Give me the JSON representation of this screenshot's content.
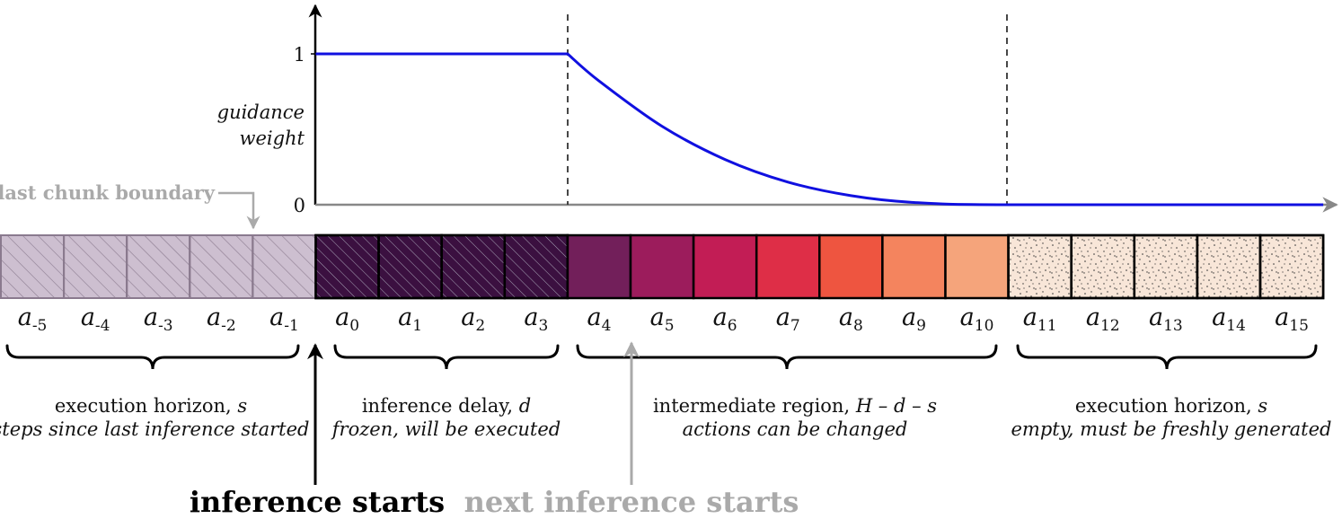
{
  "plot": {
    "y_label_line1": "guidance",
    "y_label_line2": "weight",
    "y_tick_top": "1",
    "y_tick_bottom": "0"
  },
  "chart_data": {
    "type": "line",
    "series": [
      {
        "points": [
          [
            -0.5,
            1
          ],
          [
            3.5,
            1
          ],
          [
            4,
            0.82
          ],
          [
            5,
            0.52
          ],
          [
            6,
            0.3
          ],
          [
            7,
            0.15
          ],
          [
            8,
            0.06
          ],
          [
            9,
            0.015
          ],
          [
            10.5,
            0
          ],
          [
            15.5,
            0
          ]
        ]
      }
    ],
    "line_color": "#1010e0",
    "ylim": [
      0,
      1
    ]
  },
  "chunk_boundary_label": "last chunk boundary",
  "cells": [
    {
      "base": "a",
      "sub": "-5",
      "fill": "#cdbfd0",
      "pattern": "hatch-light"
    },
    {
      "base": "a",
      "sub": "-4",
      "fill": "#cdbfd0",
      "pattern": "hatch-light"
    },
    {
      "base": "a",
      "sub": "-3",
      "fill": "#cdbfd0",
      "pattern": "hatch-light"
    },
    {
      "base": "a",
      "sub": "-2",
      "fill": "#cdbfd0",
      "pattern": "hatch-light"
    },
    {
      "base": "a",
      "sub": "-1",
      "fill": "#cdbfd0",
      "pattern": "hatch-light"
    },
    {
      "base": "a",
      "sub": "0",
      "fill": "#3b1040",
      "pattern": "hatch-dark"
    },
    {
      "base": "a",
      "sub": "1",
      "fill": "#3b1040",
      "pattern": "hatch-dark"
    },
    {
      "base": "a",
      "sub": "2",
      "fill": "#3b1040",
      "pattern": "hatch-dark"
    },
    {
      "base": "a",
      "sub": "3",
      "fill": "#3b1040",
      "pattern": "hatch-dark"
    },
    {
      "base": "a",
      "sub": "4",
      "fill": "#721f5a",
      "pattern": "none"
    },
    {
      "base": "a",
      "sub": "5",
      "fill": "#9c1c5c",
      "pattern": "none"
    },
    {
      "base": "a",
      "sub": "6",
      "fill": "#c21d55",
      "pattern": "none"
    },
    {
      "base": "a",
      "sub": "7",
      "fill": "#de2e47",
      "pattern": "none"
    },
    {
      "base": "a",
      "sub": "8",
      "fill": "#ee5540",
      "pattern": "none"
    },
    {
      "base": "a",
      "sub": "9",
      "fill": "#f4845e",
      "pattern": "none"
    },
    {
      "base": "a",
      "sub": "10",
      "fill": "#f5a47b",
      "pattern": "none"
    },
    {
      "base": "a",
      "sub": "11",
      "fill": "#f8e6d8",
      "pattern": "dots"
    },
    {
      "base": "a",
      "sub": "12",
      "fill": "#f8e6d8",
      "pattern": "dots"
    },
    {
      "base": "a",
      "sub": "13",
      "fill": "#f8e6d8",
      "pattern": "dots"
    },
    {
      "base": "a",
      "sub": "14",
      "fill": "#f8e6d8",
      "pattern": "dots"
    },
    {
      "base": "a",
      "sub": "15",
      "fill": "#f8e6d8",
      "pattern": "dots"
    }
  ],
  "regions": [
    {
      "line1_text": "execution horizon, ",
      "line1_var": "s",
      "line2": "steps since last inference started"
    },
    {
      "line1_text": "inference delay, ",
      "line1_var": "d",
      "line2": "frozen, will be executed"
    },
    {
      "line1_text": "intermediate region, ",
      "line1_var": "H – d – s",
      "line2": "actions can be changed"
    },
    {
      "line1_text": "execution horizon, ",
      "line1_var": "s",
      "line2": "empty, must be freshly generated"
    }
  ],
  "inference_starts": "inference starts",
  "next_inference_starts": "next inference starts",
  "colors": {
    "axis": "#888888",
    "faded": "#aaaaaa",
    "black": "#000000"
  }
}
